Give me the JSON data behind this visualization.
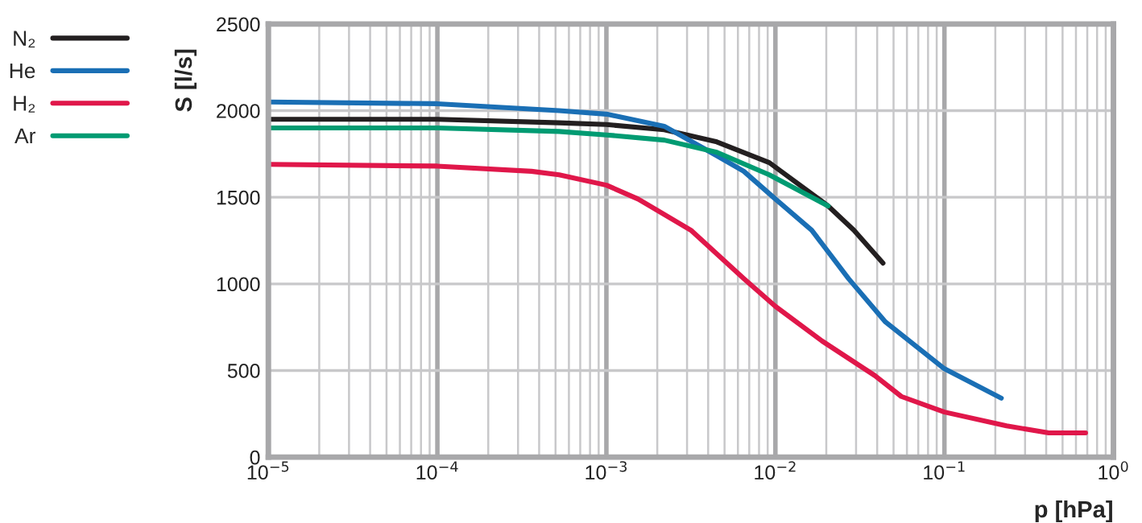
{
  "chart_data": {
    "type": "line",
    "xlabel": "p [hPa]",
    "ylabel": "S [l/s]",
    "log": "x",
    "grid": true,
    "legend": "left",
    "line_style": "solid",
    "marker": "none",
    "xlim": [
      1e-05,
      1
    ],
    "xticks": [
      {
        "value": 1e-05,
        "label": "10$^{−5}$"
      },
      {
        "value": 0.0001,
        "label": "10$^{−4}$"
      },
      {
        "value": 0.001,
        "label": "10$^{−3}$"
      },
      {
        "value": 0.01,
        "label": "10$^{−2}$"
      },
      {
        "value": 0.1,
        "label": "10$^{−1}$"
      },
      {
        "value": 1,
        "label": "10$^{0}$"
      }
    ],
    "ylim": [
      0,
      2500
    ],
    "yticks": [
      0,
      500,
      1000,
      1500,
      2000,
      2500
    ],
    "series": [
      {
        "name": "N₂",
        "color": "#231f20",
        "x": [
          1e-05,
          0.0001,
          0.000525,
          0.001,
          0.0022,
          0.0045,
          0.0092,
          0.0205,
          0.0291,
          0.0433
        ],
        "values": [
          1950,
          1950,
          1930,
          1920,
          1890,
          1820,
          1700,
          1450,
          1310,
          1120
        ]
      },
      {
        "name": "He",
        "color": "#1a6fb5",
        "x": [
          1e-05,
          0.0001,
          0.000525,
          0.001,
          0.0022,
          0.0045,
          0.0065,
          0.01,
          0.0164,
          0.0271,
          0.0448,
          0.1,
          0.217
        ],
        "values": [
          2050,
          2040,
          2000,
          1980,
          1910,
          1740,
          1650,
          1490,
          1310,
          1030,
          780,
          510,
          340
        ]
      },
      {
        "name": "H₂",
        "color": "#e0174a",
        "x": [
          1e-05,
          0.0001,
          0.00036,
          0.000525,
          0.001,
          0.00154,
          0.00316,
          0.0065,
          0.01,
          0.0189,
          0.0388,
          0.0556,
          0.1,
          0.233,
          0.414,
          0.684
        ],
        "values": [
          1690,
          1680,
          1650,
          1630,
          1570,
          1490,
          1310,
          1030,
          870,
          670,
          470,
          350,
          260,
          180,
          140,
          140
        ]
      },
      {
        "name": "Ar",
        "color": "#009b72",
        "x": [
          1e-05,
          0.0001,
          0.000525,
          0.001,
          0.0022,
          0.0045,
          0.0092,
          0.0205
        ],
        "values": [
          1900,
          1900,
          1880,
          1860,
          1830,
          1760,
          1630,
          1450
        ]
      }
    ]
  }
}
